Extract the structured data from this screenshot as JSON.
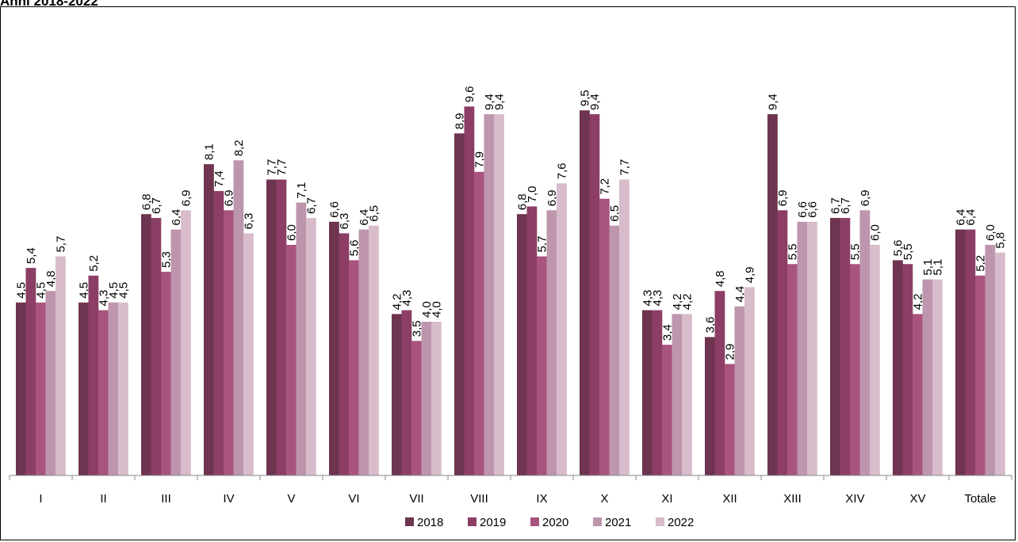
{
  "heading": "Anni 2018-2022",
  "chart_data": {
    "type": "bar",
    "title": "Anni 2018-2022",
    "categories": [
      "I",
      "II",
      "III",
      "IV",
      "V",
      "VI",
      "VII",
      "VIII",
      "IX",
      "X",
      "XI",
      "XII",
      "XIII",
      "XIV",
      "XV",
      "Totale"
    ],
    "series": [
      {
        "name": "2018",
        "color": "#6e3450",
        "values": [
          4.5,
          4.5,
          6.8,
          8.1,
          7.7,
          6.6,
          4.2,
          8.9,
          6.8,
          9.5,
          4.3,
          3.6,
          9.4,
          6.7,
          5.6,
          6.4
        ]
      },
      {
        "name": "2019",
        "color": "#8c3e66",
        "values": [
          5.4,
          5.2,
          6.7,
          7.4,
          7.7,
          6.3,
          4.3,
          9.6,
          7.0,
          9.4,
          4.3,
          4.8,
          6.9,
          6.7,
          5.5,
          6.4
        ]
      },
      {
        "name": "2020",
        "color": "#a9547f",
        "values": [
          4.5,
          4.3,
          5.3,
          6.9,
          6.0,
          5.6,
          3.5,
          7.9,
          5.7,
          7.2,
          3.4,
          2.9,
          5.5,
          5.5,
          4.2,
          5.2
        ]
      },
      {
        "name": "2021",
        "color": "#bd96ae",
        "values": [
          4.8,
          4.5,
          6.4,
          8.2,
          7.1,
          6.4,
          4.0,
          9.4,
          6.9,
          6.5,
          4.2,
          4.4,
          6.6,
          6.9,
          5.1,
          6.0
        ]
      },
      {
        "name": "2022",
        "color": "#d8bccb",
        "values": [
          5.7,
          4.5,
          6.9,
          6.3,
          6.7,
          6.5,
          4.0,
          9.4,
          7.6,
          7.7,
          4.2,
          4.9,
          6.6,
          6.0,
          5.1,
          5.8
        ]
      }
    ],
    "data_labels": [
      [
        "4,5",
        "4,5",
        "6,8",
        "8,1",
        "7,7",
        "6,6",
        "4,2",
        "8,9",
        "6,8",
        "9,5",
        "4,3",
        "3,6",
        "9,4",
        "6,7",
        "5,6",
        "6,4"
      ],
      [
        "5,4",
        "5,2",
        "6,7",
        "7,4",
        "7,7",
        "6,3",
        "4,3",
        "9,6",
        "7,0",
        "9,4",
        "4,3",
        "4,8",
        "6,9",
        "6,7",
        "5,5",
        "6,4"
      ],
      [
        "4,5",
        "4,3",
        "5,3",
        "6,9",
        "6,0",
        "5,6",
        "3,5",
        "7,9",
        "5,7",
        "7,2",
        "3,4",
        "2,9",
        "5,5",
        "5,5",
        "4,2",
        "5,2"
      ],
      [
        "4,8",
        "4,5",
        "6,4",
        "8,2",
        "7,1",
        "6,4",
        "4,0",
        "9,4",
        "6,9",
        "6,5",
        "4,2",
        "4,4",
        "6,6",
        "6,9",
        "5,1",
        "6,0"
      ],
      [
        "5,7",
        "4,5",
        "6,9",
        "6,3",
        "6,7",
        "6,5",
        "4,0",
        "9,4",
        "7,6",
        "7,7",
        "4,2",
        "4,9",
        "6,6",
        "6,0",
        "5,1",
        "5,8"
      ]
    ],
    "ylim": [
      0,
      10
    ],
    "grid": false,
    "legend_position": "bottom"
  }
}
